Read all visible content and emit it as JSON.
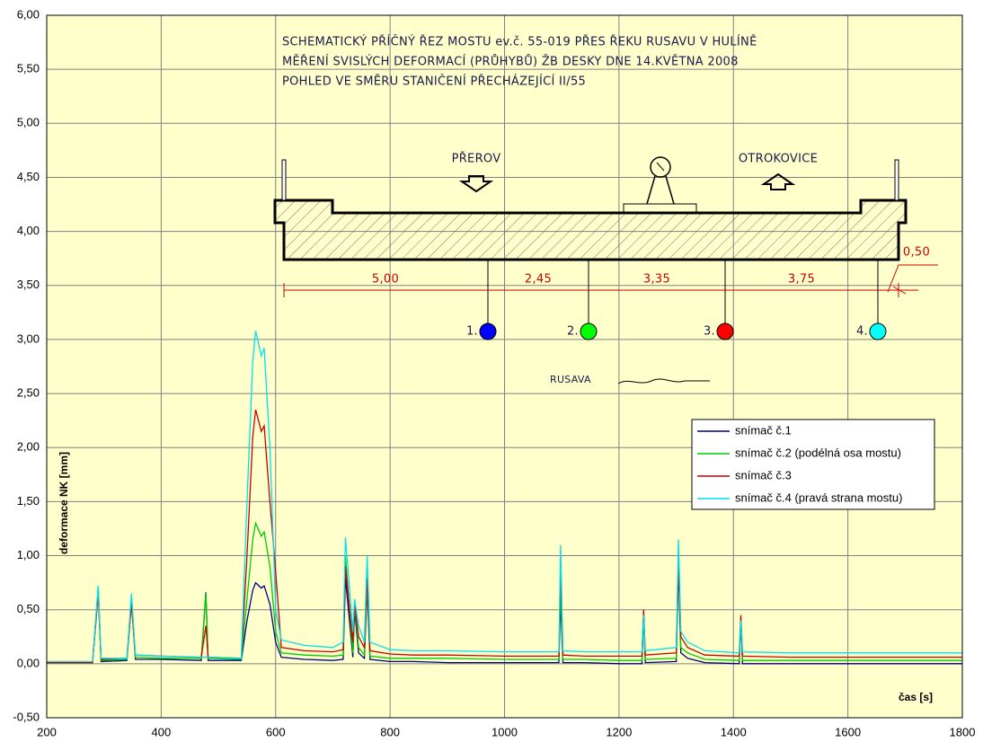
{
  "chart_data": {
    "type": "line",
    "y_label": "deformace NK [mm]",
    "x_label": "čas [s]",
    "xlim": [
      200,
      1800
    ],
    "ylim": [
      -0.5,
      6
    ],
    "xticks": [
      200,
      400,
      600,
      800,
      1000,
      1200,
      1400,
      1600,
      1800
    ],
    "yticks": [
      {
        "value": -0.5,
        "label": "-0,50"
      },
      {
        "value": 0,
        "label": "0,00"
      },
      {
        "value": 0.5,
        "label": "0,50"
      },
      {
        "value": 1,
        "label": "1,00"
      },
      {
        "value": 1.5,
        "label": "1,50"
      },
      {
        "value": 2,
        "label": "2,00"
      },
      {
        "value": 2.5,
        "label": "2,50"
      },
      {
        "value": 3,
        "label": "3,00"
      },
      {
        "value": 3.5,
        "label": "3,50"
      },
      {
        "value": 4,
        "label": "4,00"
      },
      {
        "value": 4.5,
        "label": "4,50"
      },
      {
        "value": 5,
        "label": "5,00"
      },
      {
        "value": 5.5,
        "label": "5,50"
      },
      {
        "value": 6,
        "label": "6,00"
      }
    ],
    "grid": true,
    "x": [
      200,
      280,
      290,
      295,
      340,
      348,
      355,
      400,
      470,
      478,
      482,
      540,
      550,
      560,
      565,
      575,
      580,
      590,
      600,
      610,
      650,
      700,
      718,
      722,
      735,
      738,
      745,
      755,
      760,
      765,
      800,
      840,
      900,
      1000,
      1095,
      1098,
      1102,
      1140,
      1200,
      1240,
      1243,
      1246,
      1300,
      1304,
      1308,
      1320,
      1350,
      1410,
      1413,
      1416,
      1500,
      1600,
      1700,
      1800
    ],
    "series": [
      {
        "name": "snímač č.1",
        "color": "#000080",
        "values": [
          0.01,
          0.01,
          0.7,
          0.02,
          0.03,
          0.6,
          0.04,
          0.04,
          0.03,
          0.66,
          0.03,
          0.03,
          0.4,
          0.68,
          0.75,
          0.7,
          0.72,
          0.55,
          0.2,
          0.06,
          0.04,
          0.03,
          0.04,
          0.8,
          0.06,
          0.5,
          0.1,
          0.05,
          0.7,
          0.04,
          0.02,
          0.02,
          0.01,
          0.01,
          0.01,
          0.6,
          0.01,
          0.01,
          0.0,
          0.0,
          0.45,
          0.01,
          0.02,
          0.9,
          0.1,
          0.05,
          0.01,
          0.0,
          0.4,
          0.0,
          0.0,
          0.0,
          0.0,
          0.0
        ]
      },
      {
        "name": "snímač č.2 (podélná osa mostu)",
        "color": "#00cc00",
        "values": [
          0.01,
          0.01,
          0.7,
          0.03,
          0.04,
          0.6,
          0.06,
          0.05,
          0.05,
          0.65,
          0.05,
          0.04,
          0.6,
          1.15,
          1.3,
          1.18,
          1.22,
          0.9,
          0.3,
          0.1,
          0.08,
          0.07,
          0.08,
          1.0,
          0.1,
          0.55,
          0.15,
          0.08,
          0.75,
          0.07,
          0.05,
          0.05,
          0.05,
          0.04,
          0.04,
          0.7,
          0.04,
          0.04,
          0.03,
          0.03,
          0.48,
          0.04,
          0.05,
          1.05,
          0.15,
          0.1,
          0.04,
          0.03,
          0.42,
          0.03,
          0.03,
          0.03,
          0.03,
          0.03
        ]
      },
      {
        "name": "snímač č.3",
        "color": "#cc0000",
        "values": [
          0.01,
          0.01,
          0.65,
          0.04,
          0.05,
          0.55,
          0.08,
          0.07,
          0.06,
          0.35,
          0.06,
          0.05,
          1.0,
          2.1,
          2.35,
          2.15,
          2.2,
          1.5,
          0.85,
          0.15,
          0.12,
          0.11,
          0.13,
          0.9,
          0.2,
          0.55,
          0.25,
          0.15,
          0.8,
          0.12,
          0.09,
          0.08,
          0.08,
          0.07,
          0.07,
          0.9,
          0.08,
          0.07,
          0.07,
          0.07,
          0.5,
          0.08,
          0.1,
          1.0,
          0.25,
          0.15,
          0.08,
          0.07,
          0.45,
          0.07,
          0.06,
          0.06,
          0.06,
          0.06
        ]
      },
      {
        "name": "snímač č.4 (pravá strana mostu)",
        "color": "#00e0ee",
        "values": [
          0.02,
          0.02,
          0.72,
          0.05,
          0.05,
          0.65,
          0.08,
          0.07,
          0.06,
          0.06,
          0.06,
          0.05,
          1.5,
          2.8,
          3.08,
          2.85,
          2.92,
          2.0,
          0.5,
          0.22,
          0.17,
          0.15,
          0.2,
          1.17,
          0.3,
          0.6,
          0.35,
          0.2,
          1.0,
          0.2,
          0.13,
          0.12,
          0.12,
          0.11,
          0.11,
          1.1,
          0.12,
          0.11,
          0.11,
          0.11,
          0.45,
          0.12,
          0.15,
          1.15,
          0.3,
          0.2,
          0.12,
          0.1,
          0.4,
          0.11,
          0.1,
          0.1,
          0.1,
          0.1
        ]
      }
    ],
    "annotations": {
      "title_lines": [
        "SCHEMATICKÝ PŘÍČNÝ ŘEZ MOSTU ev.č. 55-019 PŘES ŘEKU RUSAVU V HULÍNĚ",
        "MĚŘENÍ SVISLÝCH DEFORMACÍ (PRŮHYBŮ) ŽB DESKY DNE 14.KVĚTNA 2008",
        "POHLED VE SMĚRU STANIČENÍ PŘECHÁZEJÍCÍ II/55"
      ],
      "directions": [
        "PŘEROV",
        "OTROKOVICE"
      ],
      "dimensions": [
        "5,00",
        "2,45",
        "3,35",
        "3,75",
        "0,50"
      ],
      "sensors": [
        "1.",
        "2.",
        "3.",
        "4."
      ],
      "river": "RUSAVA"
    }
  }
}
